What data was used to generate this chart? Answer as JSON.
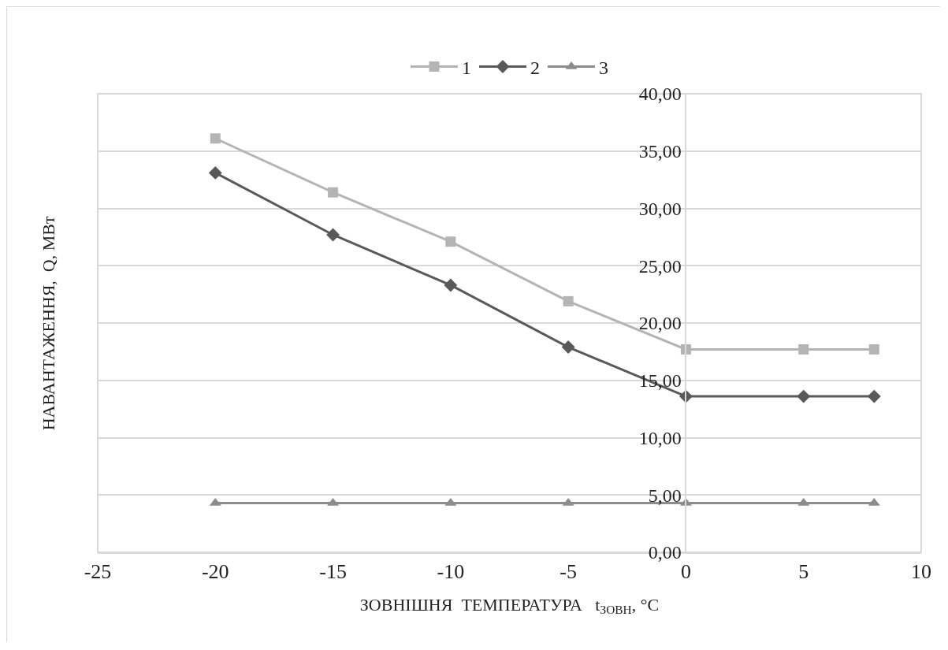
{
  "chart_data": {
    "type": "line",
    "xlabel": "ЗОВНІШНЯ  ТЕМПЕРАТУРА   t$_{ЗОВН}$, °C",
    "ylabel": "НАВАНТАЖЕННЯ,  Q, МВт",
    "x": [
      -20,
      -15,
      -10,
      -5,
      0,
      5,
      8
    ],
    "series": [
      {
        "name": "1",
        "color": "#b4b4b4",
        "marker": "square",
        "values": [
          36.1,
          31.4,
          27.1,
          21.9,
          17.7,
          17.7,
          17.7
        ]
      },
      {
        "name": "2",
        "color": "#595959",
        "marker": "diamond",
        "values": [
          33.1,
          27.7,
          23.3,
          17.9,
          13.6,
          13.6,
          13.6
        ]
      },
      {
        "name": "3",
        "color": "#8c8c8c",
        "marker": "triangle",
        "values": [
          4.3,
          4.3,
          4.3,
          4.3,
          4.3,
          4.3,
          4.3
        ]
      }
    ],
    "xlim": [
      -25,
      10
    ],
    "xticks": [
      -25,
      -20,
      -15,
      -10,
      -5,
      0,
      5,
      10
    ],
    "ylim": [
      0,
      40
    ],
    "yticks": [
      {
        "value": 0,
        "label": "0,00"
      },
      {
        "value": 5,
        "label": "5,00"
      },
      {
        "value": 10,
        "label": "10,00"
      },
      {
        "value": 15,
        "label": "15,00"
      },
      {
        "value": 20,
        "label": "20,00"
      },
      {
        "value": 25,
        "label": "25,00"
      },
      {
        "value": 30,
        "label": "30,00"
      },
      {
        "value": 35,
        "label": "35,00"
      },
      {
        "value": 40,
        "label": "40,00"
      }
    ],
    "grid": "y",
    "legend": "top",
    "line_style": "solid"
  }
}
